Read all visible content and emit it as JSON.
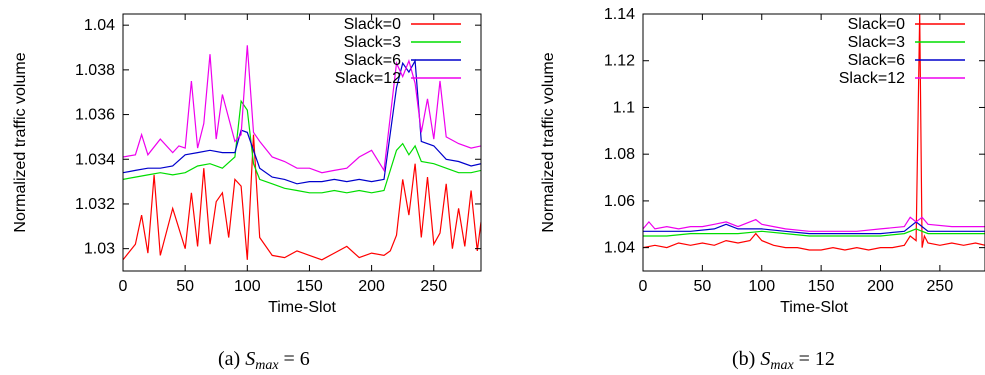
{
  "chart_data": [
    {
      "type": "line",
      "xlabel": "Time-Slot",
      "ylabel": "Normalized traffic volume",
      "xlim": [
        0,
        288
      ],
      "ylim": [
        1.029,
        1.0405
      ],
      "xticks": [
        0,
        50,
        100,
        150,
        200,
        250
      ],
      "xtick_labels": [
        "0",
        "50",
        "100",
        "150",
        "200",
        "250"
      ],
      "yticks": [
        1.03,
        1.032,
        1.034,
        1.036,
        1.038,
        1.04
      ],
      "ytick_labels": [
        "1.03",
        "1.032",
        "1.034",
        "1.036",
        "1.038",
        "1.04"
      ],
      "legend_position": "top-right",
      "caption": {
        "prefix": "(a)",
        "math": "S",
        "sub": "max",
        "rest": " = 6"
      },
      "series": [
        {
          "name": "Slack=0",
          "color": "#ff0000",
          "x": [
            0,
            10,
            15,
            20,
            25,
            30,
            40,
            50,
            55,
            60,
            65,
            70,
            75,
            80,
            85,
            90,
            95,
            100,
            105,
            110,
            120,
            130,
            140,
            150,
            160,
            170,
            180,
            190,
            200,
            210,
            215,
            220,
            225,
            230,
            235,
            240,
            245,
            250,
            255,
            260,
            265,
            270,
            275,
            280,
            285,
            288
          ],
          "y": [
            1.0295,
            1.0302,
            1.0315,
            1.0298,
            1.0333,
            1.0297,
            1.0318,
            1.03,
            1.0325,
            1.0301,
            1.0336,
            1.0302,
            1.0321,
            1.0325,
            1.0305,
            1.0331,
            1.0328,
            1.0295,
            1.0351,
            1.0305,
            1.0297,
            1.0296,
            1.0299,
            1.0297,
            1.0295,
            1.0298,
            1.0301,
            1.0296,
            1.0298,
            1.0297,
            1.0299,
            1.0306,
            1.0331,
            1.0315,
            1.0338,
            1.0305,
            1.0332,
            1.0302,
            1.0307,
            1.0329,
            1.03,
            1.0318,
            1.0301,
            1.0326,
            1.0299,
            1.0312
          ]
        },
        {
          "name": "Slack=3",
          "color": "#00dd00",
          "x": [
            0,
            10,
            20,
            30,
            40,
            50,
            60,
            70,
            80,
            90,
            95,
            100,
            105,
            110,
            120,
            130,
            140,
            150,
            160,
            170,
            180,
            190,
            200,
            210,
            220,
            225,
            230,
            235,
            240,
            250,
            260,
            270,
            280,
            288
          ],
          "y": [
            1.0331,
            1.0332,
            1.0333,
            1.0334,
            1.0333,
            1.0334,
            1.0337,
            1.0338,
            1.0336,
            1.0341,
            1.0366,
            1.0362,
            1.0338,
            1.0331,
            1.0329,
            1.0327,
            1.0326,
            1.0325,
            1.0325,
            1.0326,
            1.0325,
            1.0326,
            1.0325,
            1.0326,
            1.0344,
            1.0347,
            1.0342,
            1.0346,
            1.0339,
            1.0338,
            1.0336,
            1.0334,
            1.0334,
            1.0335
          ]
        },
        {
          "name": "Slack=6",
          "color": "#0000cc",
          "x": [
            0,
            10,
            20,
            30,
            40,
            50,
            60,
            70,
            80,
            90,
            95,
            100,
            105,
            110,
            120,
            130,
            140,
            150,
            160,
            170,
            180,
            190,
            200,
            210,
            220,
            225,
            230,
            235,
            240,
            250,
            260,
            270,
            280,
            288
          ],
          "y": [
            1.0334,
            1.0335,
            1.0336,
            1.0336,
            1.0337,
            1.0342,
            1.0343,
            1.0344,
            1.0343,
            1.0343,
            1.0353,
            1.0352,
            1.0344,
            1.0336,
            1.0332,
            1.0331,
            1.0329,
            1.033,
            1.033,
            1.0331,
            1.033,
            1.0331,
            1.033,
            1.0331,
            1.0372,
            1.0383,
            1.0379,
            1.0384,
            1.0348,
            1.0346,
            1.034,
            1.0339,
            1.0337,
            1.0338
          ]
        },
        {
          "name": "Slack=12",
          "color": "#ee00ee",
          "x": [
            0,
            10,
            15,
            20,
            30,
            40,
            45,
            50,
            55,
            60,
            65,
            70,
            75,
            80,
            90,
            95,
            100,
            105,
            110,
            120,
            130,
            140,
            150,
            160,
            170,
            180,
            190,
            200,
            210,
            220,
            225,
            230,
            235,
            240,
            245,
            250,
            255,
            260,
            270,
            280,
            288
          ],
          "y": [
            1.0341,
            1.0342,
            1.0351,
            1.0342,
            1.0349,
            1.0343,
            1.0346,
            1.0345,
            1.0375,
            1.0345,
            1.0356,
            1.0387,
            1.0349,
            1.0369,
            1.0348,
            1.0351,
            1.0391,
            1.0352,
            1.0348,
            1.0341,
            1.0339,
            1.0336,
            1.0336,
            1.0334,
            1.0335,
            1.0336,
            1.0341,
            1.0344,
            1.0335,
            1.0383,
            1.0377,
            1.0384,
            1.0374,
            1.0352,
            1.0367,
            1.0349,
            1.0375,
            1.035,
            1.0347,
            1.0345,
            1.0346
          ]
        }
      ]
    },
    {
      "type": "line",
      "xlabel": "Time-Slot",
      "ylabel": "Normalized traffic volume",
      "xlim": [
        0,
        288
      ],
      "ylim": [
        1.03,
        1.14
      ],
      "xticks": [
        0,
        50,
        100,
        150,
        200,
        250
      ],
      "xtick_labels": [
        "0",
        "50",
        "100",
        "150",
        "200",
        "250"
      ],
      "yticks": [
        1.04,
        1.06,
        1.08,
        1.1,
        1.12,
        1.14
      ],
      "ytick_labels": [
        "1.04",
        "1.06",
        "1.08",
        "1.1",
        "1.12",
        "1.14"
      ],
      "legend_position": "top-right",
      "caption": {
        "prefix": "(b)",
        "math": "S",
        "sub": "max",
        "rest": " = 12"
      },
      "series": [
        {
          "name": "Slack=0",
          "color": "#ff0000",
          "x": [
            0,
            10,
            20,
            30,
            40,
            50,
            60,
            70,
            80,
            90,
            95,
            100,
            110,
            120,
            130,
            140,
            150,
            160,
            170,
            180,
            190,
            200,
            210,
            220,
            225,
            230,
            233,
            235,
            237,
            240,
            250,
            260,
            270,
            280,
            288
          ],
          "y": [
            1.04,
            1.041,
            1.04,
            1.042,
            1.041,
            1.042,
            1.041,
            1.043,
            1.042,
            1.043,
            1.046,
            1.043,
            1.041,
            1.04,
            1.04,
            1.039,
            1.039,
            1.04,
            1.039,
            1.04,
            1.039,
            1.04,
            1.04,
            1.041,
            1.045,
            1.043,
            1.14,
            1.04,
            1.045,
            1.042,
            1.041,
            1.042,
            1.041,
            1.042,
            1.041
          ]
        },
        {
          "name": "Slack=3",
          "color": "#00dd00",
          "x": [
            0,
            20,
            40,
            60,
            80,
            100,
            120,
            140,
            160,
            180,
            200,
            220,
            230,
            240,
            260,
            288
          ],
          "y": [
            1.045,
            1.045,
            1.046,
            1.046,
            1.046,
            1.047,
            1.046,
            1.045,
            1.045,
            1.045,
            1.045,
            1.046,
            1.048,
            1.046,
            1.046,
            1.046
          ]
        },
        {
          "name": "Slack=6",
          "color": "#0000cc",
          "x": [
            0,
            20,
            40,
            60,
            70,
            80,
            100,
            120,
            140,
            160,
            180,
            200,
            220,
            230,
            235,
            240,
            260,
            288
          ],
          "y": [
            1.047,
            1.047,
            1.047,
            1.048,
            1.05,
            1.048,
            1.048,
            1.047,
            1.046,
            1.046,
            1.046,
            1.046,
            1.047,
            1.051,
            1.049,
            1.047,
            1.047,
            1.047
          ]
        },
        {
          "name": "Slack=12",
          "color": "#ee00ee",
          "x": [
            0,
            5,
            10,
            20,
            30,
            40,
            50,
            60,
            70,
            80,
            95,
            100,
            110,
            120,
            140,
            160,
            180,
            200,
            220,
            225,
            230,
            235,
            240,
            260,
            280,
            288
          ],
          "y": [
            1.048,
            1.051,
            1.048,
            1.049,
            1.048,
            1.049,
            1.049,
            1.05,
            1.051,
            1.049,
            1.052,
            1.05,
            1.049,
            1.048,
            1.047,
            1.047,
            1.047,
            1.048,
            1.049,
            1.053,
            1.051,
            1.053,
            1.05,
            1.049,
            1.049,
            1.049
          ]
        }
      ]
    }
  ]
}
